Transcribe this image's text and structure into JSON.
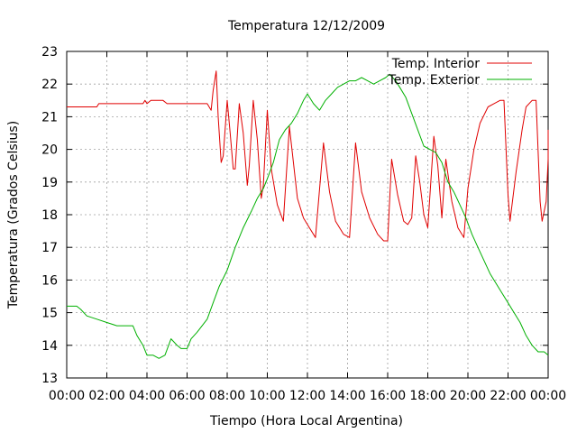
{
  "chart_data": {
    "type": "line",
    "title": "Temperatura 12/12/2009",
    "xlabel": "Tiempo (Hora Local Argentina)",
    "ylabel": "Temperatura (Grados Celsius)",
    "xlim": [
      0,
      24
    ],
    "ylim": [
      13,
      23
    ],
    "x_ticks": [
      "00:00",
      "02:00",
      "04:00",
      "06:00",
      "08:00",
      "10:00",
      "12:00",
      "14:00",
      "16:00",
      "18:00",
      "20:00",
      "22:00",
      "00:00"
    ],
    "y_ticks": [
      "13",
      "14",
      "15",
      "16",
      "17",
      "18",
      "19",
      "20",
      "21",
      "22",
      "23"
    ],
    "grid": true,
    "legend_position": "top-right",
    "series": [
      {
        "name": "Temp. Interior",
        "color": "#e00000",
        "points": [
          [
            0,
            21.3
          ],
          [
            1.0,
            21.3
          ],
          [
            1.5,
            21.3
          ],
          [
            1.6,
            21.4
          ],
          [
            2.5,
            21.4
          ],
          [
            3.5,
            21.4
          ],
          [
            3.8,
            21.4
          ],
          [
            3.9,
            21.5
          ],
          [
            4.0,
            21.4
          ],
          [
            4.2,
            21.5
          ],
          [
            4.8,
            21.5
          ],
          [
            5.0,
            21.4
          ],
          [
            6.0,
            21.4
          ],
          [
            7.0,
            21.4
          ],
          [
            7.2,
            21.2
          ],
          [
            7.3,
            21.8
          ],
          [
            7.45,
            22.4
          ],
          [
            7.55,
            21.0
          ],
          [
            7.7,
            19.6
          ],
          [
            7.8,
            19.8
          ],
          [
            8.0,
            21.5
          ],
          [
            8.15,
            20.5
          ],
          [
            8.3,
            19.4
          ],
          [
            8.4,
            19.4
          ],
          [
            8.6,
            21.4
          ],
          [
            8.8,
            20.5
          ],
          [
            9.0,
            18.9
          ],
          [
            9.1,
            19.5
          ],
          [
            9.3,
            21.5
          ],
          [
            9.5,
            20.3
          ],
          [
            9.7,
            18.5
          ],
          [
            9.8,
            18.9
          ],
          [
            10.0,
            21.2
          ],
          [
            10.2,
            19.4
          ],
          [
            10.5,
            18.3
          ],
          [
            10.8,
            17.8
          ],
          [
            11.1,
            20.7
          ],
          [
            11.5,
            18.5
          ],
          [
            11.8,
            17.9
          ],
          [
            12.1,
            17.6
          ],
          [
            12.4,
            17.3
          ],
          [
            12.8,
            20.2
          ],
          [
            13.1,
            18.7
          ],
          [
            13.4,
            17.8
          ],
          [
            13.8,
            17.4
          ],
          [
            14.1,
            17.3
          ],
          [
            14.4,
            20.2
          ],
          [
            14.7,
            18.7
          ],
          [
            15.1,
            17.9
          ],
          [
            15.5,
            17.4
          ],
          [
            15.8,
            17.2
          ],
          [
            16.0,
            17.2
          ],
          [
            16.2,
            19.7
          ],
          [
            16.5,
            18.6
          ],
          [
            16.8,
            17.8
          ],
          [
            17.0,
            17.7
          ],
          [
            17.2,
            17.9
          ],
          [
            17.4,
            19.8
          ],
          [
            17.6,
            19.0
          ],
          [
            17.8,
            18.0
          ],
          [
            18.0,
            17.6
          ],
          [
            18.3,
            20.4
          ],
          [
            18.5,
            19.5
          ],
          [
            18.7,
            17.9
          ],
          [
            18.9,
            19.7
          ],
          [
            19.2,
            18.4
          ],
          [
            19.5,
            17.6
          ],
          [
            19.8,
            17.3
          ],
          [
            20.0,
            18.8
          ],
          [
            20.3,
            20.0
          ],
          [
            20.6,
            20.8
          ],
          [
            21.0,
            21.3
          ],
          [
            21.3,
            21.4
          ],
          [
            21.6,
            21.5
          ],
          [
            21.8,
            21.5
          ],
          [
            22.0,
            18.6
          ],
          [
            22.1,
            17.8
          ],
          [
            22.4,
            19.3
          ],
          [
            22.7,
            20.6
          ],
          [
            22.9,
            21.3
          ],
          [
            23.2,
            21.5
          ],
          [
            23.4,
            21.5
          ],
          [
            23.6,
            18.4
          ],
          [
            23.7,
            17.8
          ],
          [
            23.9,
            18.4
          ],
          [
            24.0,
            19.7
          ],
          [
            24.0,
            20.6
          ]
        ]
      },
      {
        "name": "Temp. Exterior",
        "color": "#00b000",
        "points": [
          [
            0,
            15.2
          ],
          [
            0.5,
            15.2
          ],
          [
            0.7,
            15.1
          ],
          [
            1.0,
            14.9
          ],
          [
            1.5,
            14.8
          ],
          [
            2.0,
            14.7
          ],
          [
            2.5,
            14.6
          ],
          [
            3.0,
            14.6
          ],
          [
            3.3,
            14.6
          ],
          [
            3.5,
            14.3
          ],
          [
            3.8,
            14.0
          ],
          [
            4.0,
            13.7
          ],
          [
            4.3,
            13.7
          ],
          [
            4.6,
            13.6
          ],
          [
            4.9,
            13.7
          ],
          [
            5.2,
            14.2
          ],
          [
            5.5,
            14.0
          ],
          [
            5.7,
            13.9
          ],
          [
            6.0,
            13.9
          ],
          [
            6.2,
            14.2
          ],
          [
            6.5,
            14.4
          ],
          [
            7.0,
            14.8
          ],
          [
            7.3,
            15.3
          ],
          [
            7.6,
            15.8
          ],
          [
            8.0,
            16.3
          ],
          [
            8.4,
            17.0
          ],
          [
            8.8,
            17.6
          ],
          [
            9.2,
            18.1
          ],
          [
            9.5,
            18.5
          ],
          [
            9.8,
            18.8
          ],
          [
            10.0,
            19.1
          ],
          [
            10.3,
            19.6
          ],
          [
            10.6,
            20.3
          ],
          [
            10.9,
            20.6
          ],
          [
            11.2,
            20.8
          ],
          [
            11.5,
            21.1
          ],
          [
            11.8,
            21.5
          ],
          [
            12.0,
            21.7
          ],
          [
            12.3,
            21.4
          ],
          [
            12.6,
            21.2
          ],
          [
            12.9,
            21.5
          ],
          [
            13.2,
            21.7
          ],
          [
            13.5,
            21.9
          ],
          [
            13.8,
            22.0
          ],
          [
            14.1,
            22.1
          ],
          [
            14.4,
            22.1
          ],
          [
            14.7,
            22.2
          ],
          [
            15.0,
            22.1
          ],
          [
            15.3,
            22.0
          ],
          [
            15.6,
            22.1
          ],
          [
            15.9,
            22.2
          ],
          [
            16.1,
            22.3
          ],
          [
            16.4,
            22.1
          ],
          [
            16.6,
            21.9
          ],
          [
            16.9,
            21.6
          ],
          [
            17.2,
            21.1
          ],
          [
            17.5,
            20.6
          ],
          [
            17.8,
            20.1
          ],
          [
            18.1,
            20.0
          ],
          [
            18.4,
            19.9
          ],
          [
            18.7,
            19.6
          ],
          [
            19.0,
            19.0
          ],
          [
            19.3,
            18.7
          ],
          [
            19.6,
            18.3
          ],
          [
            19.9,
            17.9
          ],
          [
            20.2,
            17.4
          ],
          [
            20.5,
            17.0
          ],
          [
            20.8,
            16.6
          ],
          [
            21.1,
            16.2
          ],
          [
            21.4,
            15.9
          ],
          [
            21.7,
            15.6
          ],
          [
            22.0,
            15.3
          ],
          [
            22.3,
            15.0
          ],
          [
            22.6,
            14.7
          ],
          [
            22.9,
            14.3
          ],
          [
            23.2,
            14.0
          ],
          [
            23.5,
            13.8
          ],
          [
            23.8,
            13.8
          ],
          [
            24.0,
            13.7
          ]
        ]
      }
    ]
  }
}
